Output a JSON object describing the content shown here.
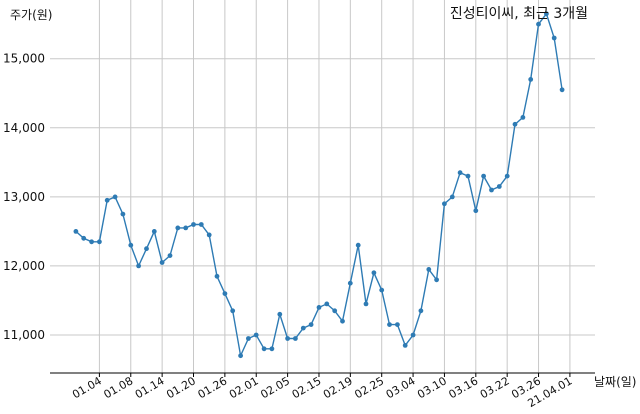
{
  "chart_data": {
    "type": "line",
    "title": "진성티이씨, 최근 3개월",
    "xlabel": "날짜(일)",
    "ylabel": "주가(원)",
    "ylim": [
      10450,
      15850
    ],
    "yticks": [
      11000,
      12000,
      13000,
      14000,
      15000
    ],
    "ytick_labels": [
      "11,000",
      "12,000",
      "13,000",
      "14,000",
      "15,000"
    ],
    "xtick_labels": [
      "01.04",
      "01.08",
      "01.14",
      "01.20",
      "01.26",
      "02.01",
      "02.05",
      "02.15",
      "02.19",
      "02.25",
      "03.04",
      "03.10",
      "03.16",
      "03.22",
      "03.26",
      "21.04.01"
    ],
    "xtick_positions": [
      3,
      7,
      11,
      15,
      19,
      23,
      27,
      31,
      35,
      39,
      43,
      47,
      51,
      55,
      59,
      63
    ],
    "x_range": [
      -3.3,
      66.2
    ],
    "grid": true,
    "line_color": "#2e7bb4",
    "values": [
      12500,
      12400,
      12350,
      12350,
      12950,
      13000,
      12750,
      12300,
      12000,
      12250,
      12500,
      12050,
      12150,
      12550,
      12550,
      12600,
      12600,
      12450,
      11850,
      11600,
      11350,
      10700,
      10950,
      11000,
      10800,
      10800,
      11300,
      10950,
      10950,
      11100,
      11150,
      11400,
      11450,
      11350,
      11200,
      11750,
      12300,
      11450,
      11900,
      11650,
      11150,
      11150,
      10850,
      11000,
      11350,
      11950,
      11800,
      12900,
      13000,
      13350,
      13300,
      12800,
      13300,
      13100,
      13150,
      13300,
      14050,
      14150,
      14700,
      15500,
      15650,
      15300,
      14550
    ]
  }
}
